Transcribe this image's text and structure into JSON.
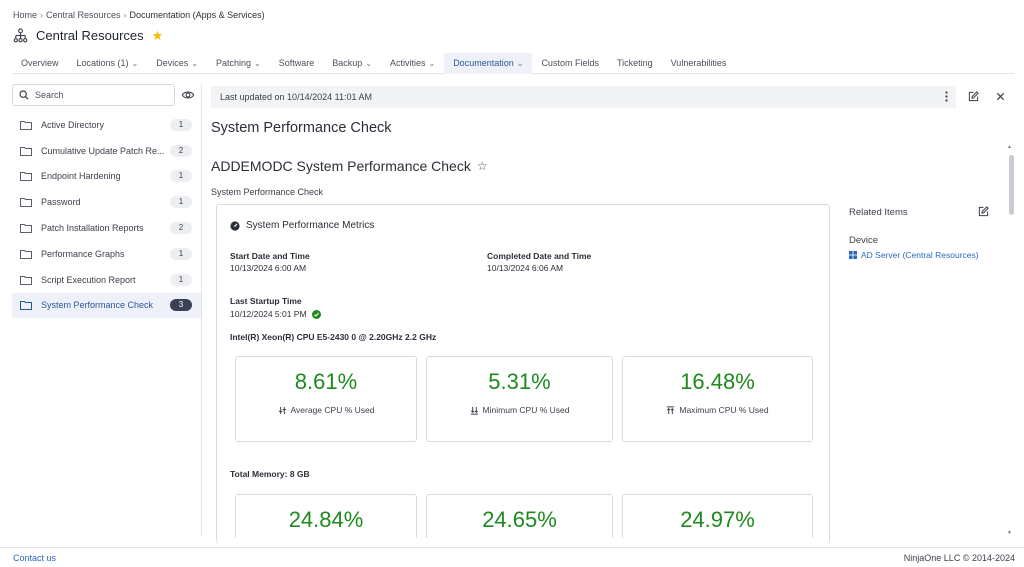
{
  "breadcrumb": {
    "items": [
      "Home",
      "Central Resources"
    ],
    "current": "Documentation (Apps & Services)"
  },
  "page": {
    "title": "Central Resources"
  },
  "tabs": [
    {
      "label": "Overview",
      "has_menu": false
    },
    {
      "label": "Locations (1)",
      "has_menu": true
    },
    {
      "label": "Devices",
      "has_menu": true
    },
    {
      "label": "Patching",
      "has_menu": true
    },
    {
      "label": "Software",
      "has_menu": false
    },
    {
      "label": "Backup",
      "has_menu": true
    },
    {
      "label": "Activities",
      "has_menu": true
    },
    {
      "label": "Documentation",
      "has_menu": true,
      "active": true
    },
    {
      "label": "Custom Fields",
      "has_menu": false
    },
    {
      "label": "Ticketing",
      "has_menu": false
    },
    {
      "label": "Vulnerabilities",
      "has_menu": false
    }
  ],
  "sidebar": {
    "search_placeholder": "Search",
    "items": [
      {
        "label": "Active Directory",
        "count": "1"
      },
      {
        "label": "Cumulative Update Patch Re...",
        "count": "2"
      },
      {
        "label": "Endpoint Hardening",
        "count": "1"
      },
      {
        "label": "Password",
        "count": "1"
      },
      {
        "label": "Patch Installation Reports",
        "count": "2"
      },
      {
        "label": "Performance Graphs",
        "count": "1"
      },
      {
        "label": "Script Execution Report",
        "count": "1"
      },
      {
        "label": "System Performance Check",
        "count": "3",
        "active": true
      }
    ]
  },
  "doc": {
    "last_updated": "Last updated on 10/14/2024 11:01 AM",
    "title": "System Performance Check",
    "subtitle": "ADDEMODC System Performance Check",
    "template": "System Performance Check",
    "card": {
      "header": "System Performance Metrics",
      "start_label": "Start Date and Time",
      "start_value": "10/13/2024 6:00 AM",
      "completed_label": "Completed Date and Time",
      "completed_value": "10/13/2024 6:06 AM",
      "startup_label": "Last Startup Time",
      "startup_value": "10/12/2024 5:01 PM",
      "cpu_label": "Intel(R) Xeon(R) CPU E5-2430 0 @ 2.20GHz 2.2 GHz",
      "cpu_stats": [
        {
          "value": "8.61%",
          "caption": "Average CPU % Used",
          "icon": "average-icon"
        },
        {
          "value": "5.31%",
          "caption": "Minimum CPU % Used",
          "icon": "minimum-icon"
        },
        {
          "value": "16.48%",
          "caption": "Maximum CPU % Used",
          "icon": "maximum-icon"
        }
      ],
      "memory_label": "Total Memory: 8 GB",
      "memory_stats": [
        {
          "value": "24.84%"
        },
        {
          "value": "24.65%"
        },
        {
          "value": "24.97%"
        }
      ]
    }
  },
  "related": {
    "title": "Related Items",
    "device_label": "Device",
    "device_link": "AD Server (Central Resources)"
  },
  "footer": {
    "contact": "Contact us",
    "copyright": "NinjaOne LLC © 2014-2024"
  },
  "colors": {
    "accent": "#2b55a0",
    "link": "#2b67c2",
    "success": "#1e8a1e",
    "star": "#f5b800"
  }
}
